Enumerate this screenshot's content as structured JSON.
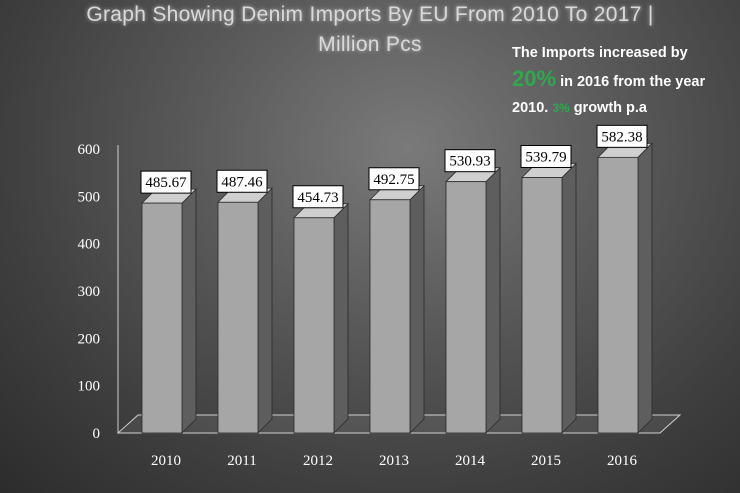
{
  "title_line1": "Graph Showing Denim Imports By EU From 2010 To 2017 |",
  "title_line2": "Million Pcs",
  "callout": {
    "line1": "The Imports increased by",
    "highlight": "20%",
    "line2_rest": " in 2016 from the year",
    "line3_start": "2010. ",
    "growth": "3%",
    "line3_end": " growth p.a"
  },
  "colors": {
    "bar_front": "#a6a6a6",
    "bar_side": "#5e5e5e",
    "bar_top": "#cfcfcf",
    "accent_green": "#2fa84f"
  },
  "chart_data": {
    "type": "bar",
    "title": "Graph Showing Denim Imports By EU From 2010 To 2017 | Million Pcs",
    "categories": [
      "2010",
      "2011",
      "2012",
      "2013",
      "2014",
      "2015",
      "2016"
    ],
    "values": [
      485.67,
      487.46,
      454.73,
      492.75,
      530.93,
      539.79,
      582.38
    ],
    "value_labels": [
      "485.67",
      "487.46",
      "454.73",
      "492.75",
      "530.93",
      "539.79",
      "582.38"
    ],
    "y_ticks": [
      "0",
      "100",
      "200",
      "300",
      "400",
      "500",
      "600"
    ],
    "ylim": [
      0,
      600
    ],
    "grid": false,
    "legend": "none",
    "xlabel": "",
    "ylabel": ""
  }
}
